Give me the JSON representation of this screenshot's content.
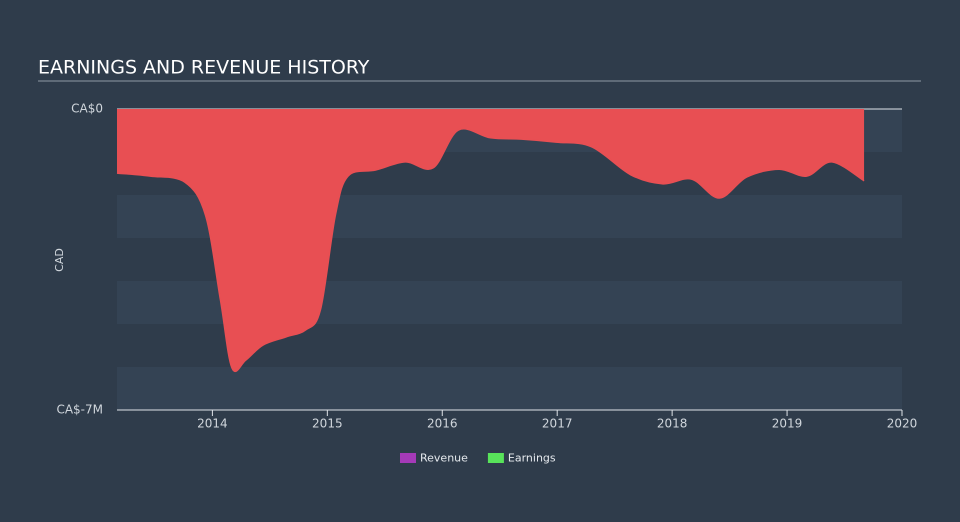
{
  "chart_data": {
    "type": "area",
    "title": "EARNINGS AND REVENUE HISTORY",
    "ylabel": "CAD",
    "x": [
      2013.17,
      2013.46,
      2013.76,
      2013.94,
      2014.07,
      2014.17,
      2014.29,
      2014.44,
      2014.64,
      2014.81,
      2014.94,
      2015.07,
      2015.18,
      2015.42,
      2015.68,
      2015.92,
      2016.14,
      2016.42,
      2016.69,
      2016.99,
      2017.3,
      2017.64,
      2017.92,
      2018.17,
      2018.41,
      2018.65,
      2018.93,
      2019.17,
      2019.39,
      2019.67
    ],
    "series": [
      {
        "name": "Earnings",
        "color": "#e84f53",
        "values": [
          -1490000,
          -1560000,
          -1700000,
          -2470000,
          -4440000,
          -6020000,
          -5840000,
          -5490000,
          -5300000,
          -5140000,
          -4670000,
          -2470000,
          -1560000,
          -1420000,
          -1230000,
          -1370000,
          -490000,
          -670000,
          -700000,
          -770000,
          -880000,
          -1530000,
          -1740000,
          -1630000,
          -2070000,
          -1580000,
          -1400000,
          -1560000,
          -1230000,
          -1670000
        ]
      }
    ],
    "legend": [
      {
        "name": "Revenue",
        "color": "#a53ab8"
      },
      {
        "name": "Earnings",
        "color": "#58e35a"
      }
    ],
    "xlim": [
      2013.17,
      2020
    ],
    "xticks": [
      2014,
      2015,
      2016,
      2017,
      2018,
      2019,
      2020
    ],
    "ylim": [
      -7000000,
      0
    ],
    "yticks": [
      {
        "value": 0,
        "label": "CA$0"
      },
      {
        "value": -7000000,
        "label": "CA$-7M"
      }
    ]
  }
}
